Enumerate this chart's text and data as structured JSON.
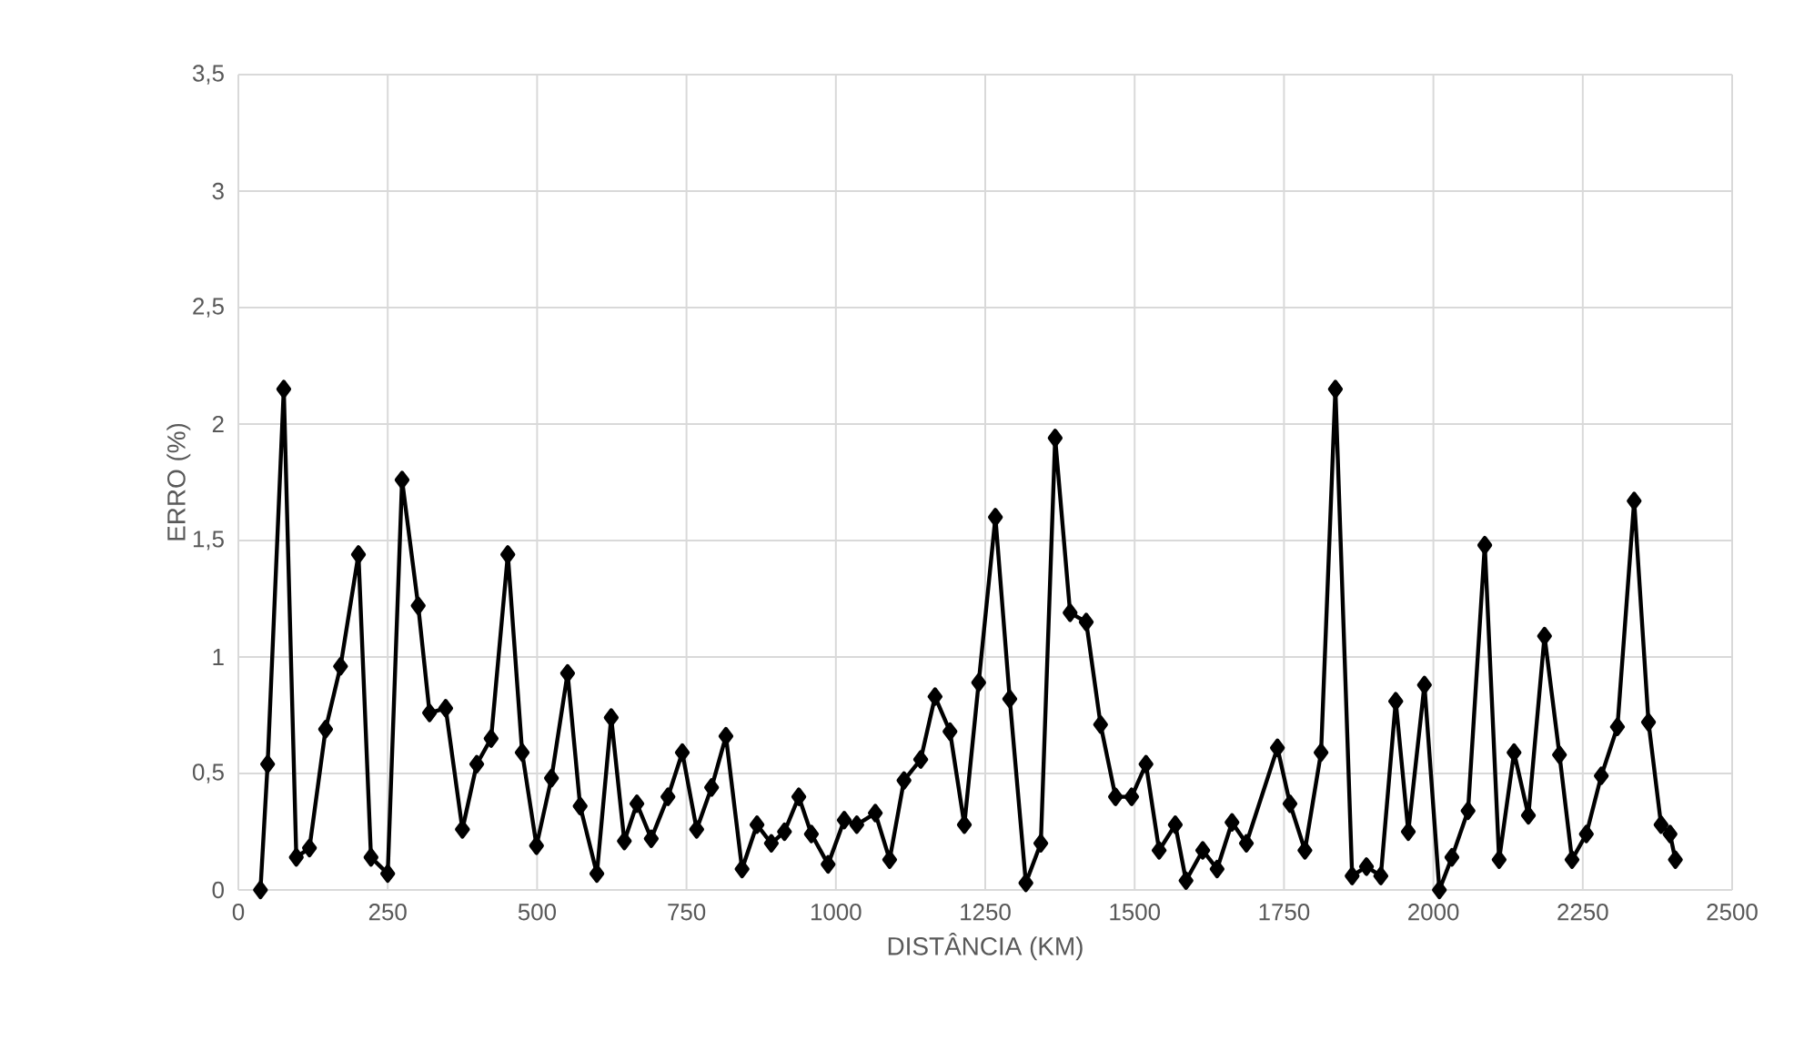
{
  "chart_data": {
    "type": "line",
    "xlabel": "DISTÂNCIA (KM)",
    "ylabel": "ERRO (%)",
    "xlim": [
      0,
      2500
    ],
    "ylim": [
      0,
      3.5
    ],
    "xticks": [
      0,
      250,
      500,
      750,
      1000,
      1250,
      1500,
      1750,
      2000,
      2250,
      2500
    ],
    "yticks": [
      0,
      {
        "value": 0.5,
        "label": "0,5"
      },
      1,
      {
        "value": 1.5,
        "label": "1,5"
      },
      2,
      {
        "value": 2.5,
        "label": "2,5"
      },
      3,
      {
        "value": 3.5,
        "label": "3,5"
      }
    ],
    "grid": true,
    "marker": "diamond",
    "line_style": "solid",
    "series": [
      {
        "color": "#000000",
        "x": [
          37,
          49,
          76,
          97,
          119,
          146,
          171,
          201,
          222,
          250,
          274,
          301,
          320,
          347,
          375,
          399,
          423,
          451,
          475,
          499,
          524,
          551,
          572,
          600,
          624,
          646,
          667,
          691,
          719,
          743,
          767,
          792,
          816,
          843,
          868,
          892,
          914,
          938,
          959,
          987,
          1014,
          1035,
          1066,
          1090,
          1114,
          1142,
          1166,
          1191,
          1215,
          1239,
          1267,
          1291,
          1318,
          1343,
          1367,
          1392,
          1419,
          1443,
          1468,
          1495,
          1519,
          1541,
          1568,
          1586,
          1614,
          1638,
          1663,
          1687,
          1739,
          1760,
          1785,
          1812,
          1836,
          1864,
          1888,
          1912,
          1937,
          1958,
          1985,
          2010,
          2031,
          2058,
          2086,
          2110,
          2135,
          2159,
          2186,
          2211,
          2232,
          2256,
          2281,
          2308,
          2336,
          2360,
          2381,
          2396,
          2405
        ],
        "values": [
          0,
          0.54,
          2.15,
          0.14,
          0.18,
          0.69,
          0.96,
          1.44,
          0.14,
          0.07,
          1.76,
          1.22,
          0.76,
          0.78,
          0.26,
          0.54,
          0.65,
          1.44,
          0.59,
          0.19,
          0.48,
          0.93,
          0.36,
          0.07,
          0.74,
          0.21,
          0.37,
          0.22,
          0.4,
          0.59,
          0.26,
          0.44,
          0.66,
          0.09,
          0.28,
          0.2,
          0.25,
          0.4,
          0.24,
          0.11,
          0.3,
          0.28,
          0.33,
          0.13,
          0.47,
          0.56,
          0.83,
          0.68,
          0.28,
          0.89,
          1.6,
          0.82,
          0.03,
          0.2,
          1.94,
          1.19,
          1.15,
          0.71,
          0.4,
          0.4,
          0.54,
          0.17,
          0.28,
          0.04,
          0.17,
          0.09,
          0.29,
          0.2,
          0.61,
          0.37,
          0.17,
          0.59,
          2.15,
          0.06,
          0.1,
          0.06,
          0.81,
          0.25,
          0.88,
          0,
          0.14,
          0.34,
          1.48,
          0.13,
          0.59,
          0.32,
          1.09,
          0.58,
          0.13,
          0.24,
          0.49,
          0.7,
          1.67,
          0.72,
          0.28,
          0.24,
          0.13
        ]
      }
    ]
  }
}
